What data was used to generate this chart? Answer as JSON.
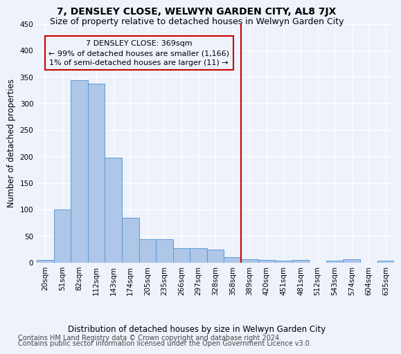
{
  "title": "7, DENSLEY CLOSE, WELWYN GARDEN CITY, AL8 7JX",
  "subtitle": "Size of property relative to detached houses in Welwyn Garden City",
  "xlabel": "Distribution of detached houses by size in Welwyn Garden City",
  "ylabel": "Number of detached properties",
  "bar_values": [
    5,
    100,
    344,
    337,
    197,
    84,
    44,
    44,
    27,
    27,
    24,
    10,
    6,
    5,
    3,
    5,
    0,
    3,
    6,
    0,
    3
  ],
  "bar_labels": [
    "20sqm",
    "51sqm",
    "82sqm",
    "112sqm",
    "143sqm",
    "174sqm",
    "205sqm",
    "235sqm",
    "266sqm",
    "297sqm",
    "328sqm",
    "358sqm",
    "389sqm",
    "420sqm",
    "451sqm",
    "481sqm",
    "512sqm",
    "543sqm",
    "574sqm",
    "604sqm",
    "635sqm"
  ],
  "bar_color": "#aec6e8",
  "bar_edge_color": "#5b9bd5",
  "vline_x": 11.5,
  "vline_color": "#cc0000",
  "annotation_text": "7 DENSLEY CLOSE: 369sqm\n← 99% of detached houses are smaller (1,166)\n1% of semi-detached houses are larger (11) →",
  "annotation_box_color": "#cc0000",
  "ylim": [
    0,
    450
  ],
  "yticks": [
    0,
    50,
    100,
    150,
    200,
    250,
    300,
    350,
    400,
    450
  ],
  "footer_line1": "Contains HM Land Registry data © Crown copyright and database right 2024.",
  "footer_line2": "Contains public sector information licensed under the Open Government Licence v3.0.",
  "bg_color": "#eef2fb",
  "grid_color": "#ffffff",
  "title_fontsize": 10,
  "subtitle_fontsize": 9,
  "axis_label_fontsize": 8.5,
  "tick_fontsize": 7.5,
  "annotation_fontsize": 8,
  "footer_fontsize": 7
}
